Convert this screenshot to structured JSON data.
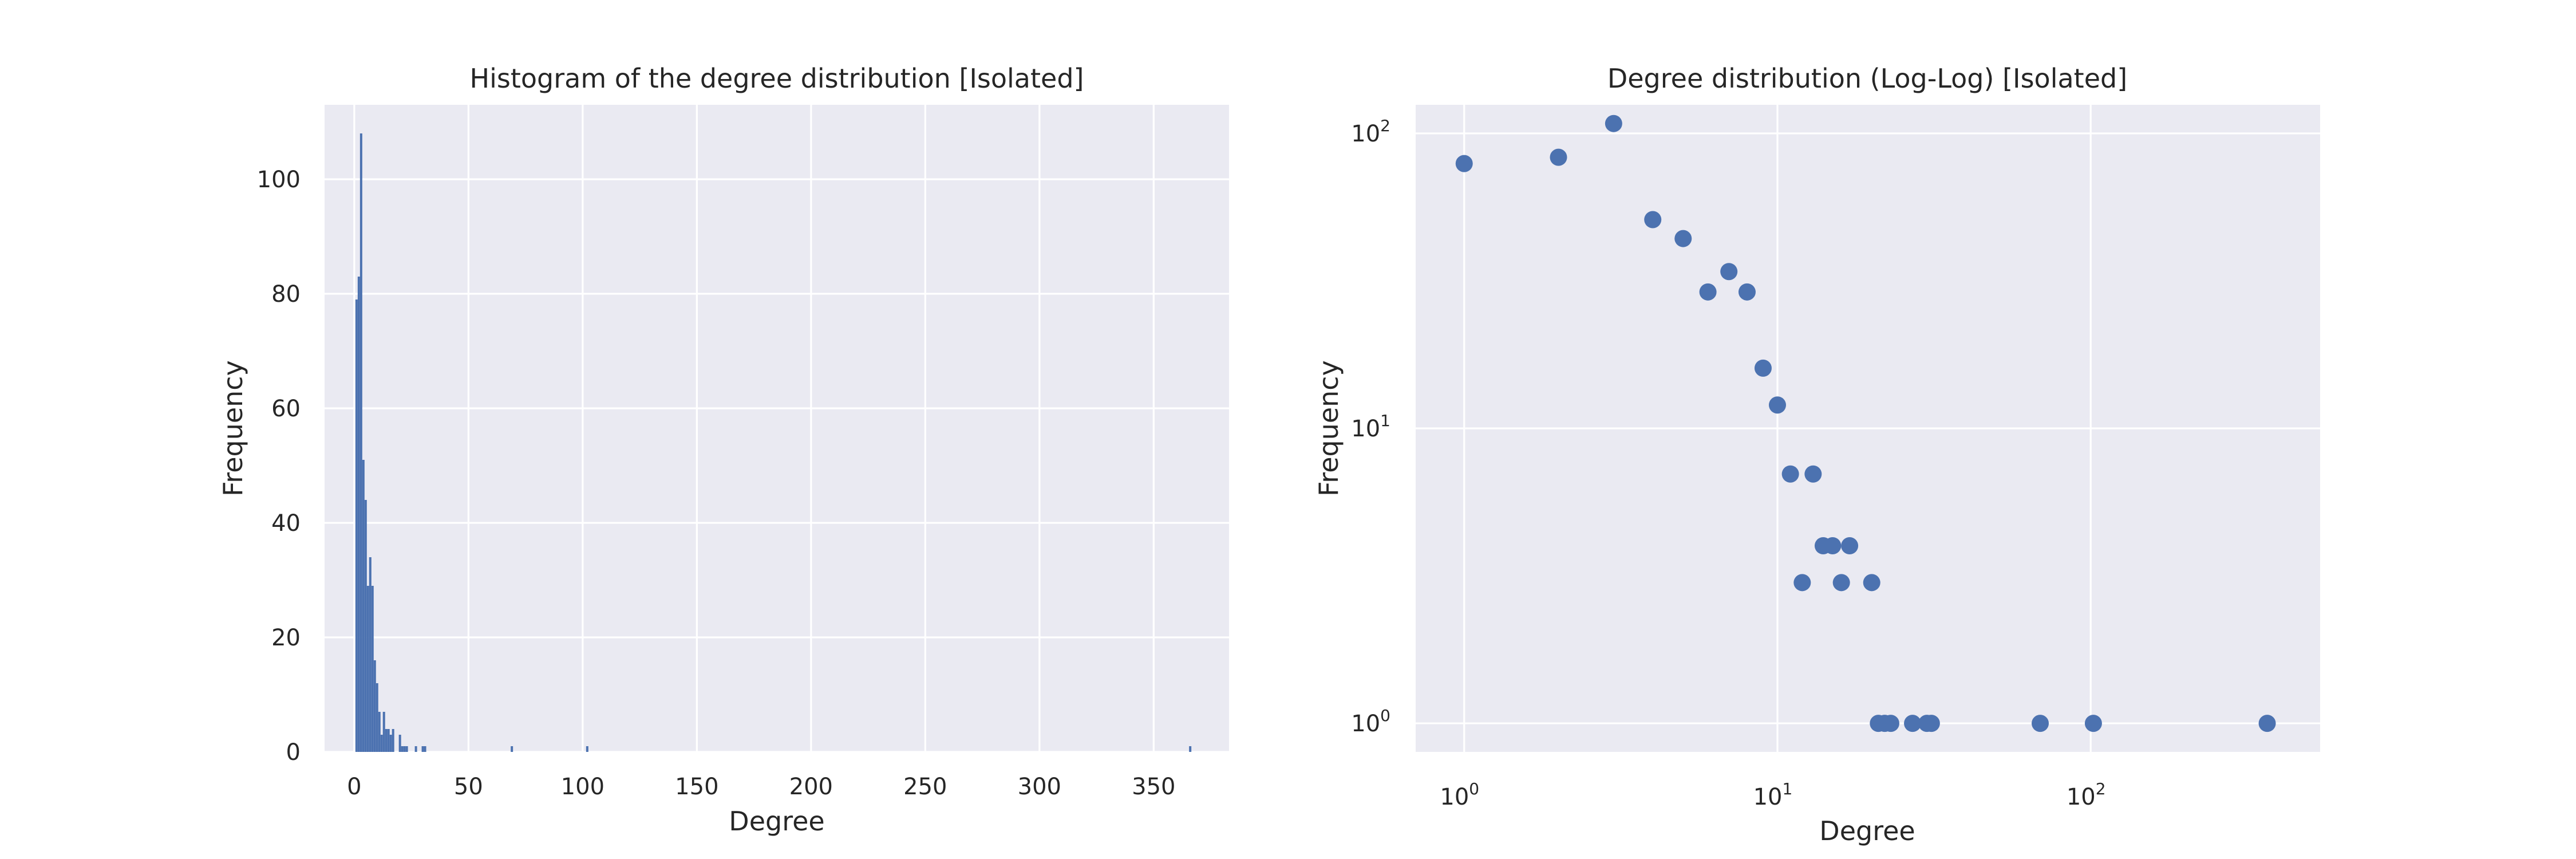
{
  "charts": {
    "histogram": {
      "title": "Histogram of the degree distribution [Isolated]",
      "xlabel": "Degree",
      "ylabel": "Frequency",
      "xticks": [
        "0",
        "50",
        "100",
        "150",
        "200",
        "250",
        "300",
        "350"
      ],
      "yticks": [
        "0",
        "20",
        "40",
        "60",
        "80",
        "100"
      ]
    },
    "loglog": {
      "title": "Degree distribution (Log-Log) [Isolated]",
      "xlabel": "Degree",
      "ylabel": "Frequency",
      "xticks": [
        {
          "base": "10",
          "exp": "0"
        },
        {
          "base": "10",
          "exp": "1"
        },
        {
          "base": "10",
          "exp": "2"
        }
      ],
      "yticks": [
        {
          "base": "10",
          "exp": "0"
        },
        {
          "base": "10",
          "exp": "1"
        },
        {
          "base": "10",
          "exp": "2"
        }
      ]
    }
  },
  "chart_data": [
    {
      "type": "bar",
      "title": "Histogram of the degree distribution [Isolated]",
      "xlabel": "Degree",
      "ylabel": "Frequency",
      "xlim": [
        -13,
        383
      ],
      "ylim": [
        0,
        113
      ],
      "grid": true,
      "color": "#4c72b0",
      "bin_width": 1,
      "x": [
        1,
        2,
        3,
        4,
        5,
        6,
        7,
        8,
        9,
        10,
        11,
        12,
        13,
        14,
        15,
        16,
        17,
        20,
        21,
        22,
        23,
        27,
        30,
        31,
        69,
        102,
        366
      ],
      "values": [
        79,
        83,
        108,
        51,
        44,
        29,
        34,
        29,
        16,
        12,
        7,
        3,
        7,
        4,
        4,
        3,
        4,
        3,
        1,
        1,
        1,
        1,
        1,
        1,
        1,
        1,
        1
      ]
    },
    {
      "type": "scatter",
      "title": "Degree distribution (Log-Log) [Isolated]",
      "xlabel": "Degree",
      "ylabel": "Frequency",
      "xscale": "log",
      "yscale": "log",
      "xlim": [
        0.7,
        540
      ],
      "ylim": [
        0.8,
        125
      ],
      "grid": true,
      "color": "#4c72b0",
      "x": [
        1,
        2,
        3,
        4,
        5,
        6,
        7,
        8,
        9,
        10,
        11,
        12,
        13,
        14,
        15,
        16,
        17,
        20,
        21,
        22,
        23,
        27,
        30,
        31,
        69,
        102,
        366
      ],
      "y": [
        79,
        83,
        108,
        51,
        44,
        29,
        34,
        29,
        16,
        12,
        7,
        3,
        7,
        4,
        4,
        3,
        4,
        3,
        1,
        1,
        1,
        1,
        1,
        1,
        1,
        1,
        1
      ]
    }
  ]
}
